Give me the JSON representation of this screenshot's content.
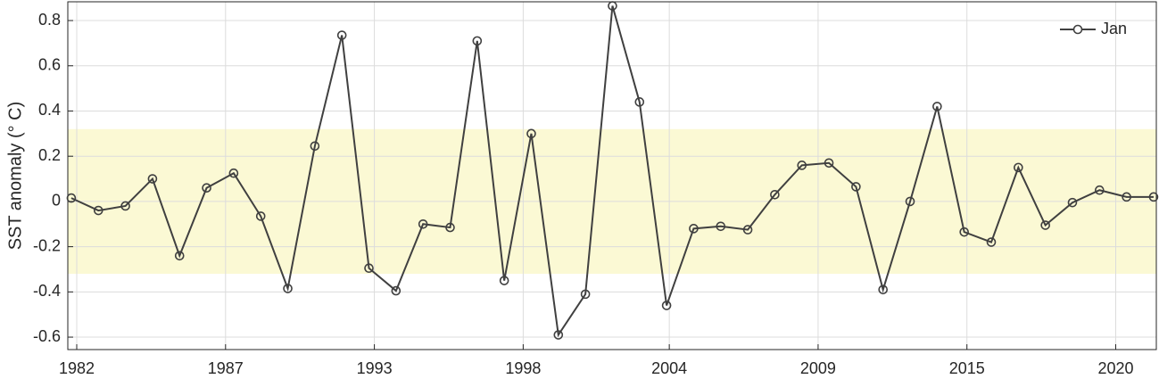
{
  "chart_data": {
    "type": "line",
    "y_label": "SST anomaly (° C)",
    "x": [
      1982,
      1983,
      1984,
      1985,
      1986,
      1987,
      1988,
      1989,
      1990,
      1991,
      1992,
      1993,
      1994,
      1995,
      1996,
      1997,
      1998,
      1999,
      2000,
      2001,
      2002,
      2003,
      2004,
      2005,
      2006,
      2007,
      2008,
      2009,
      2010,
      2011,
      2012,
      2013,
      2014,
      2015,
      2016,
      2017,
      2018,
      2019,
      2020,
      2021,
      2022
    ],
    "series": [
      {
        "name": "Jan",
        "color": "#404040",
        "values": [
          0.015,
          -0.04,
          -0.02,
          0.1,
          -0.24,
          0.06,
          0.125,
          -0.065,
          -0.385,
          0.245,
          0.735,
          -0.295,
          -0.395,
          -0.1,
          -0.115,
          0.71,
          -0.35,
          0.3,
          -0.59,
          -0.41,
          0.865,
          0.44,
          -0.46,
          -0.12,
          -0.11,
          -0.125,
          0.03,
          0.16,
          0.17,
          0.065,
          -0.39,
          0.0,
          0.42,
          -0.135,
          -0.18,
          0.15,
          -0.105,
          -0.005,
          0.05,
          0.02,
          0.02
        ]
      }
    ],
    "xlim": [
      1981.87,
      2022.1
    ],
    "xticks": [
      {
        "value": 1982.2,
        "label": "1982"
      },
      {
        "value": 1987.7,
        "label": "1987"
      },
      {
        "value": 1993.2,
        "label": "1993"
      },
      {
        "value": 1998.7,
        "label": "1998"
      },
      {
        "value": 2004.1,
        "label": "2004"
      },
      {
        "value": 2009.6,
        "label": "2009"
      },
      {
        "value": 2015.1,
        "label": "2015"
      },
      {
        "value": 2020.6,
        "label": "2020"
      }
    ],
    "ylim": [
      -0.655,
      0.883
    ],
    "yticks": [
      -0.6,
      -0.4,
      -0.2,
      0,
      0.2,
      0.4,
      0.6,
      0.8
    ],
    "band": [
      -0.32,
      0.32
    ],
    "band_color": "#fbf9d4",
    "grid": true,
    "legend": "upper right"
  }
}
